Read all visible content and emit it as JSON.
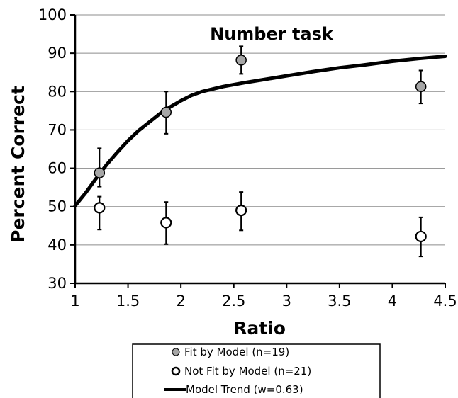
{
  "chart_data": {
    "type": "scatter",
    "title": "Number task",
    "xlabel": "Ratio",
    "ylabel": "Percent Correct",
    "xlim": [
      1,
      4.5
    ],
    "ylim": [
      30,
      100
    ],
    "x_ticks": [
      "1",
      "1.5",
      "2",
      "2.5",
      "3",
      "3.5",
      "4",
      "4.5"
    ],
    "y_ticks": [
      "30",
      "40",
      "50",
      "60",
      "70",
      "80",
      "90",
      "100"
    ],
    "grid": "horizontal",
    "legend_position": "bottom",
    "series": [
      {
        "name": "Fit by Model (n=19)",
        "kind": "points",
        "marker": "filled-gray",
        "color": "#a6a6a6",
        "x": [
          1.23,
          1.86,
          2.57,
          4.27
        ],
        "y": [
          58.8,
          74.6,
          88.2,
          81.3
        ],
        "err_low": [
          55.2,
          69.0,
          84.6,
          76.9
        ],
        "err_high": [
          65.2,
          80.0,
          91.8,
          85.5
        ]
      },
      {
        "name": "Not Fit by Model (n=21)",
        "kind": "points",
        "marker": "open-white",
        "color": "#ffffff",
        "x": [
          1.23,
          1.86,
          2.57,
          4.27
        ],
        "y": [
          49.7,
          45.8,
          49.0,
          42.2
        ],
        "err_low": [
          44.0,
          40.2,
          43.8,
          37.0
        ],
        "err_high": [
          52.6,
          51.2,
          53.8,
          47.2
        ]
      },
      {
        "name": "Model Trend (w=0.63)",
        "kind": "line",
        "color": "#000000",
        "x": [
          1.0,
          1.1,
          1.2,
          1.3,
          1.4,
          1.5,
          1.6,
          1.7,
          1.8,
          1.9,
          2.0,
          2.1,
          2.2,
          2.4,
          2.6,
          2.8,
          3.0,
          3.25,
          3.5,
          3.75,
          4.0,
          4.25,
          4.5
        ],
        "y": [
          50.2,
          53.6,
          57.4,
          61.0,
          64.2,
          67.2,
          69.8,
          72.0,
          74.2,
          76.0,
          77.6,
          79.0,
          80.0,
          81.3,
          82.3,
          83.2,
          84.1,
          85.2,
          86.2,
          87.0,
          87.9,
          88.6,
          89.2
        ]
      }
    ]
  }
}
